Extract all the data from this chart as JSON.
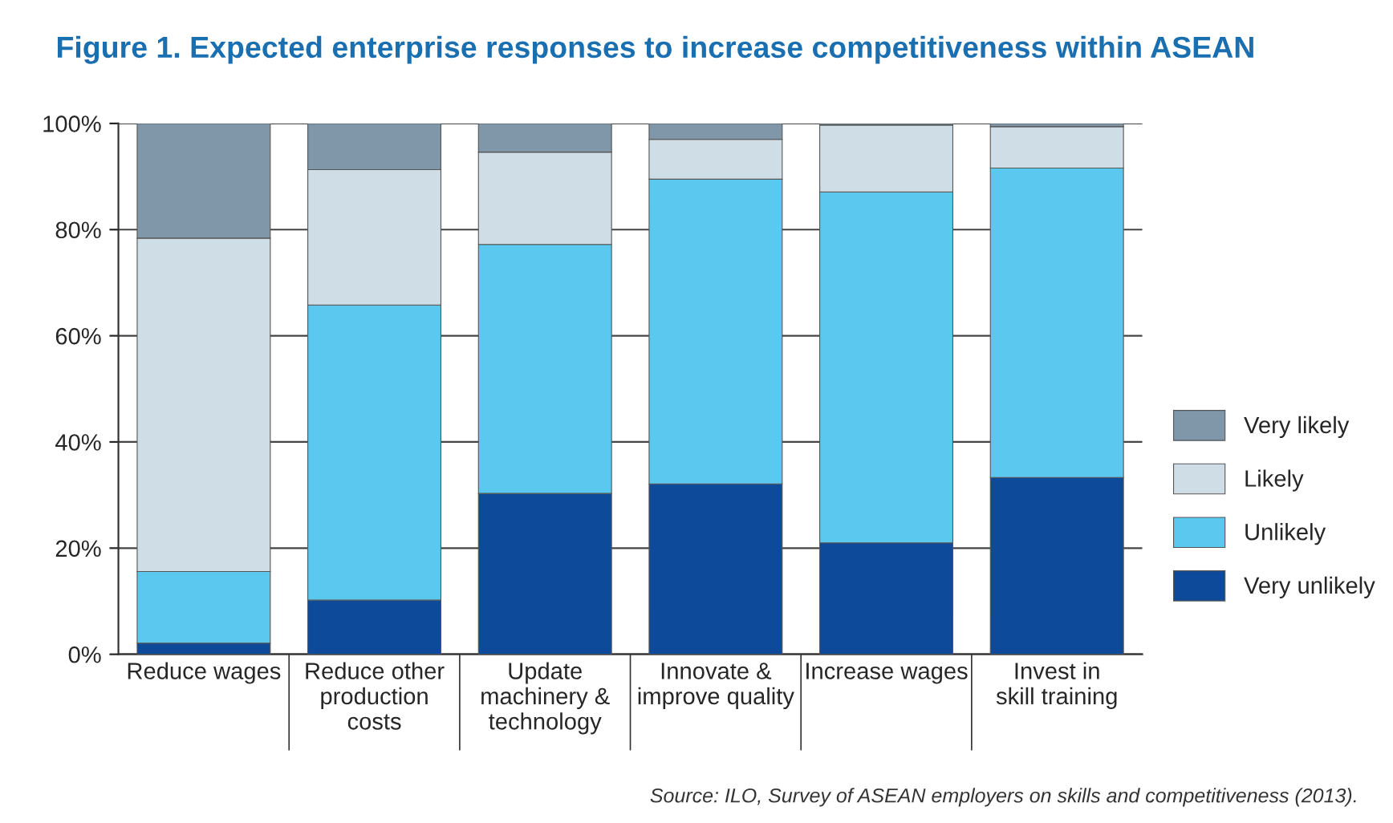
{
  "chart_data": {
    "type": "bar",
    "stacked": true,
    "title": "Figure 1. Expected enterprise responses to increase competitiveness within ASEAN",
    "categories": [
      "Reduce wages",
      "Reduce other\nproduction\ncosts",
      "Update\nmachinery &\ntechnology",
      "Innovate &\nimprove quality",
      "Increase wages",
      "Invest in\nskill training"
    ],
    "series": [
      {
        "name": "Very unlikely",
        "color": "#0d4a9a",
        "values": [
          2.1,
          10.2,
          30.3,
          32.1,
          21.0,
          33.3
        ]
      },
      {
        "name": "Unlikely",
        "color": "#5bc8f0",
        "values": [
          13.5,
          55.6,
          46.9,
          57.4,
          66.1,
          58.3
        ]
      },
      {
        "name": "Likely",
        "color": "#cfdde6",
        "values": [
          62.8,
          25.5,
          17.4,
          7.5,
          12.6,
          7.8
        ]
      },
      {
        "name": "Very likely",
        "color": "#7f97a8",
        "values": [
          21.6,
          8.7,
          5.4,
          3.0,
          0.3,
          0.6
        ]
      }
    ],
    "ylim": [
      0,
      100
    ],
    "yticks": [
      {
        "value": 0,
        "label": "0%"
      },
      {
        "value": 20,
        "label": "20%"
      },
      {
        "value": 40,
        "label": "40%"
      },
      {
        "value": 60,
        "label": "60%"
      },
      {
        "value": 80,
        "label": "80%"
      },
      {
        "value": 100,
        "label": "100%"
      }
    ],
    "grid": "y",
    "legend": "right",
    "annotations": [
      "Source: ILO, Survey of ASEAN employers on skills and competitiveness (2013)."
    ]
  }
}
